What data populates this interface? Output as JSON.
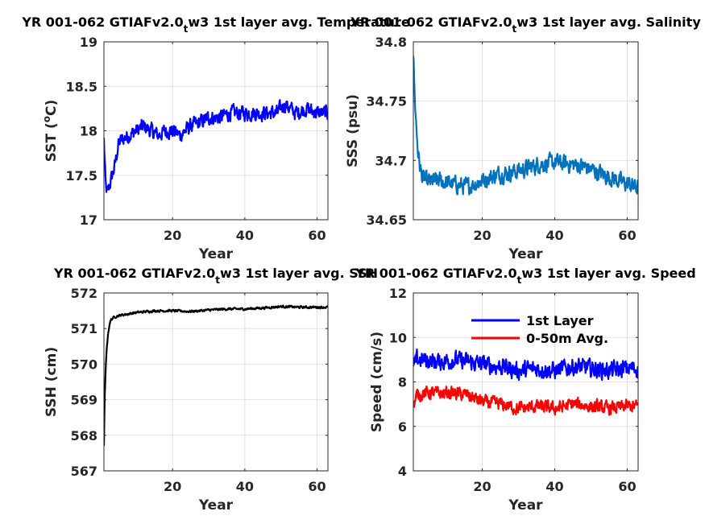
{
  "chart_data": [
    {
      "type": "line",
      "title": "YR 001-062 GTIAFv2.0_tw3 1st layer avg. Temperature",
      "xlabel": "Year",
      "ylabel": "SST (°C)",
      "xlim": [
        1,
        63
      ],
      "ylim": [
        17,
        19
      ],
      "xticks": [
        20,
        40,
        60
      ],
      "yticks": [
        17,
        17.5,
        18,
        18.5,
        19
      ],
      "yticklabels": [
        "17",
        "17.5",
        "18",
        "18.5",
        "19"
      ],
      "grid": true,
      "series": [
        {
          "color": "#0000ff",
          "x": [
            1,
            1.5,
            2,
            3,
            4,
            5,
            6,
            8,
            10,
            12,
            14,
            16,
            18,
            20,
            22,
            25,
            28,
            30,
            33,
            36,
            40,
            43,
            46,
            49,
            51,
            54,
            57,
            60,
            63
          ],
          "y": [
            17.9,
            17.35,
            17.3,
            17.45,
            17.6,
            17.85,
            17.9,
            17.95,
            18.0,
            18.05,
            18.0,
            17.95,
            18.0,
            18.0,
            17.95,
            18.05,
            18.1,
            18.15,
            18.15,
            18.2,
            18.2,
            18.2,
            18.2,
            18.2,
            18.3,
            18.2,
            18.25,
            18.2,
            18.2
          ],
          "noise": 0.13
        }
      ]
    },
    {
      "type": "line",
      "title": "YR 001-062 GTIAFv2.0_tw3 1st layer avg. Salinity",
      "xlabel": "Year",
      "ylabel": "SSS (psu)",
      "xlim": [
        1,
        63
      ],
      "ylim": [
        34.65,
        34.8
      ],
      "xticks": [
        20,
        40,
        60
      ],
      "yticks": [
        34.65,
        34.7,
        34.75,
        34.8
      ],
      "yticklabels": [
        "34.65",
        "34.7",
        "34.75",
        "34.8"
      ],
      "grid": true,
      "series": [
        {
          "color": "#0072bd",
          "x": [
            1,
            1.3,
            1.7,
            2.2,
            2.8,
            3.5,
            5,
            8,
            12,
            16,
            20,
            24,
            28,
            32,
            36,
            40,
            44,
            48,
            52,
            56,
            60,
            63
          ],
          "y": [
            34.79,
            34.76,
            34.735,
            34.71,
            34.695,
            34.685,
            34.682,
            34.683,
            34.68,
            34.678,
            34.683,
            34.688,
            34.69,
            34.693,
            34.697,
            34.698,
            34.697,
            34.695,
            34.69,
            34.685,
            34.68,
            34.677
          ],
          "noise": 0.011
        }
      ]
    },
    {
      "type": "line",
      "title": "YR 001-062 GTIAFv2.0_tw3 1st layer avg. SSH",
      "xlabel": "Year",
      "ylabel": "SSH (cm)",
      "xlim": [
        1,
        63
      ],
      "ylim": [
        567,
        572
      ],
      "xticks": [
        20,
        40,
        60
      ],
      "yticks": [
        567,
        568,
        569,
        570,
        571,
        572
      ],
      "yticklabels": [
        "567",
        "568",
        "569",
        "570",
        "571",
        "572"
      ],
      "grid": true,
      "series": [
        {
          "color": "#000000",
          "x": [
            1,
            1.2,
            1.5,
            1.8,
            2.2,
            2.6,
            3,
            3.5,
            4.5,
            6,
            10,
            15,
            20,
            25,
            30,
            35,
            40,
            45,
            50,
            55,
            60,
            63
          ],
          "y": [
            567.7,
            569.0,
            569.9,
            570.5,
            570.9,
            571.15,
            571.25,
            571.3,
            571.35,
            571.38,
            571.45,
            571.5,
            571.5,
            571.48,
            571.52,
            571.55,
            571.55,
            571.58,
            571.62,
            571.6,
            571.6,
            571.6
          ],
          "noise": 0.05
        }
      ]
    },
    {
      "type": "line",
      "title": "YR 001-062 GTIAFv2.0_tw3 1st layer avg. Speed",
      "xlabel": "Year",
      "ylabel": "Speed (cm/s)",
      "xlim": [
        1,
        63
      ],
      "ylim": [
        4,
        12
      ],
      "xticks": [
        20,
        40,
        60
      ],
      "yticks": [
        4,
        6,
        8,
        10,
        12
      ],
      "yticklabels": [
        "4",
        "6",
        "8",
        "10",
        "12"
      ],
      "grid": true,
      "legend_position": "top-right",
      "series": [
        {
          "name": "1st Layer",
          "color": "#0000ff",
          "x": [
            1,
            2,
            4,
            8,
            12,
            16,
            20,
            25,
            30,
            35,
            40,
            45,
            50,
            55,
            60,
            63
          ],
          "y": [
            8.6,
            9.0,
            9.0,
            8.9,
            9.0,
            8.9,
            8.8,
            8.7,
            8.5,
            8.6,
            8.5,
            8.7,
            8.6,
            8.5,
            8.6,
            8.6
          ],
          "noise": 0.6
        },
        {
          "name": "0-50m Avg.",
          "color": "#ff0000",
          "x": [
            1,
            2,
            4,
            8,
            12,
            16,
            20,
            25,
            30,
            35,
            40,
            45,
            50,
            55,
            60,
            63
          ],
          "y": [
            6.9,
            7.4,
            7.5,
            7.5,
            7.5,
            7.4,
            7.1,
            7.0,
            6.8,
            6.9,
            6.8,
            7.0,
            6.9,
            6.8,
            6.9,
            6.9
          ],
          "noise": 0.45
        }
      ]
    }
  ]
}
